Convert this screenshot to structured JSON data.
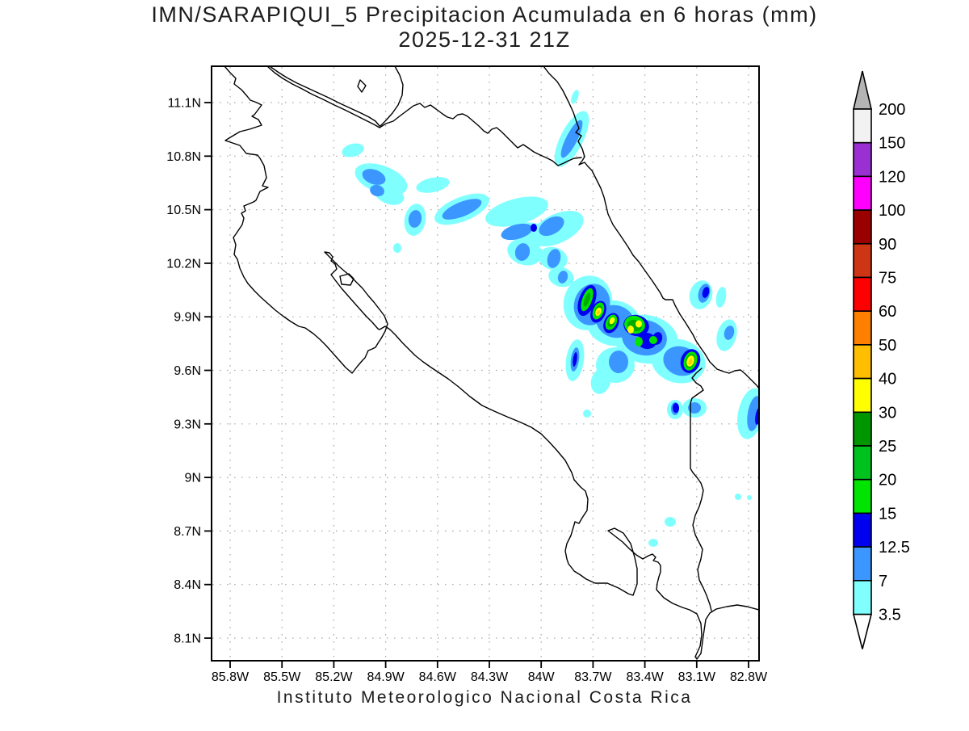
{
  "title": {
    "line1": "IMN/SARAPIQUI_5 Precipitacion Acumulada en 6 horas (mm)",
    "line2": "2025-12-31 21Z"
  },
  "footer": "Instituto Meteorologico Nacional Costa Rica",
  "axes": {
    "lat_labels": [
      "11.1N",
      "10.8N",
      "10.5N",
      "10.2N",
      "9.9N",
      "9.6N",
      "9.3N",
      "9N",
      "8.7N",
      "8.4N",
      "8.1N"
    ],
    "lon_labels": [
      "85.8W",
      "85.5W",
      "85.2W",
      "84.9W",
      "84.6W",
      "84.3W",
      "84W",
      "83.7W",
      "83.4W",
      "83.1W",
      "82.8W"
    ]
  },
  "colorbar": {
    "units": "mm",
    "over_color": "#b4b4b4",
    "under_color": "#ffffff",
    "cells": [
      {
        "label": "200",
        "color": "#f2f2f2"
      },
      {
        "label": "150",
        "color": "#9b30d2"
      },
      {
        "label": "120",
        "color": "#ff00ff"
      },
      {
        "label": "100",
        "color": "#9b0000"
      },
      {
        "label": "90",
        "color": "#cd3514"
      },
      {
        "label": "75",
        "color": "#ff0000"
      },
      {
        "label": "60",
        "color": "#ff7f00"
      },
      {
        "label": "50",
        "color": "#ffbe00"
      },
      {
        "label": "40",
        "color": "#ffff00"
      },
      {
        "label": "30",
        "color": "#009600"
      },
      {
        "label": "25",
        "color": "#00c21e"
      },
      {
        "label": "20",
        "color": "#00e400"
      },
      {
        "label": "15",
        "color": "#0000f0"
      },
      {
        "label": "12.5",
        "color": "#3c96ff"
      },
      {
        "label": "7",
        "color": "#80ffff"
      },
      {
        "label": "3.5",
        "color": null
      }
    ]
  },
  "palette": {
    "precip_cyan": "#80ffff",
    "precip_lightblue": "#3c96ff",
    "precip_blue": "#0000f0",
    "precip_green_bright": "#00e400",
    "precip_green": "#00aa00",
    "precip_yellow": "#ffff00",
    "precip_gold": "#ffc800",
    "coastline": "#000000"
  }
}
